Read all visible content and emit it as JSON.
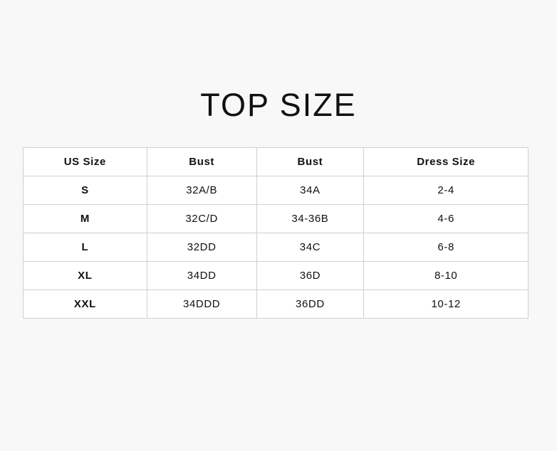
{
  "title": "TOP SIZE",
  "table": {
    "headers": [
      "US Size",
      "Bust",
      "Bust",
      "Dress Size"
    ],
    "rows": [
      [
        "S",
        "32A/B",
        "34A",
        "2-4"
      ],
      [
        "M",
        "32C/D",
        "34-36B",
        "4-6"
      ],
      [
        "L",
        "32DD",
        "34C",
        "6-8"
      ],
      [
        "XL",
        "34DD",
        "36D",
        "8-10"
      ],
      [
        "XXL",
        "34DDD",
        "36DD",
        "10-12"
      ]
    ]
  }
}
